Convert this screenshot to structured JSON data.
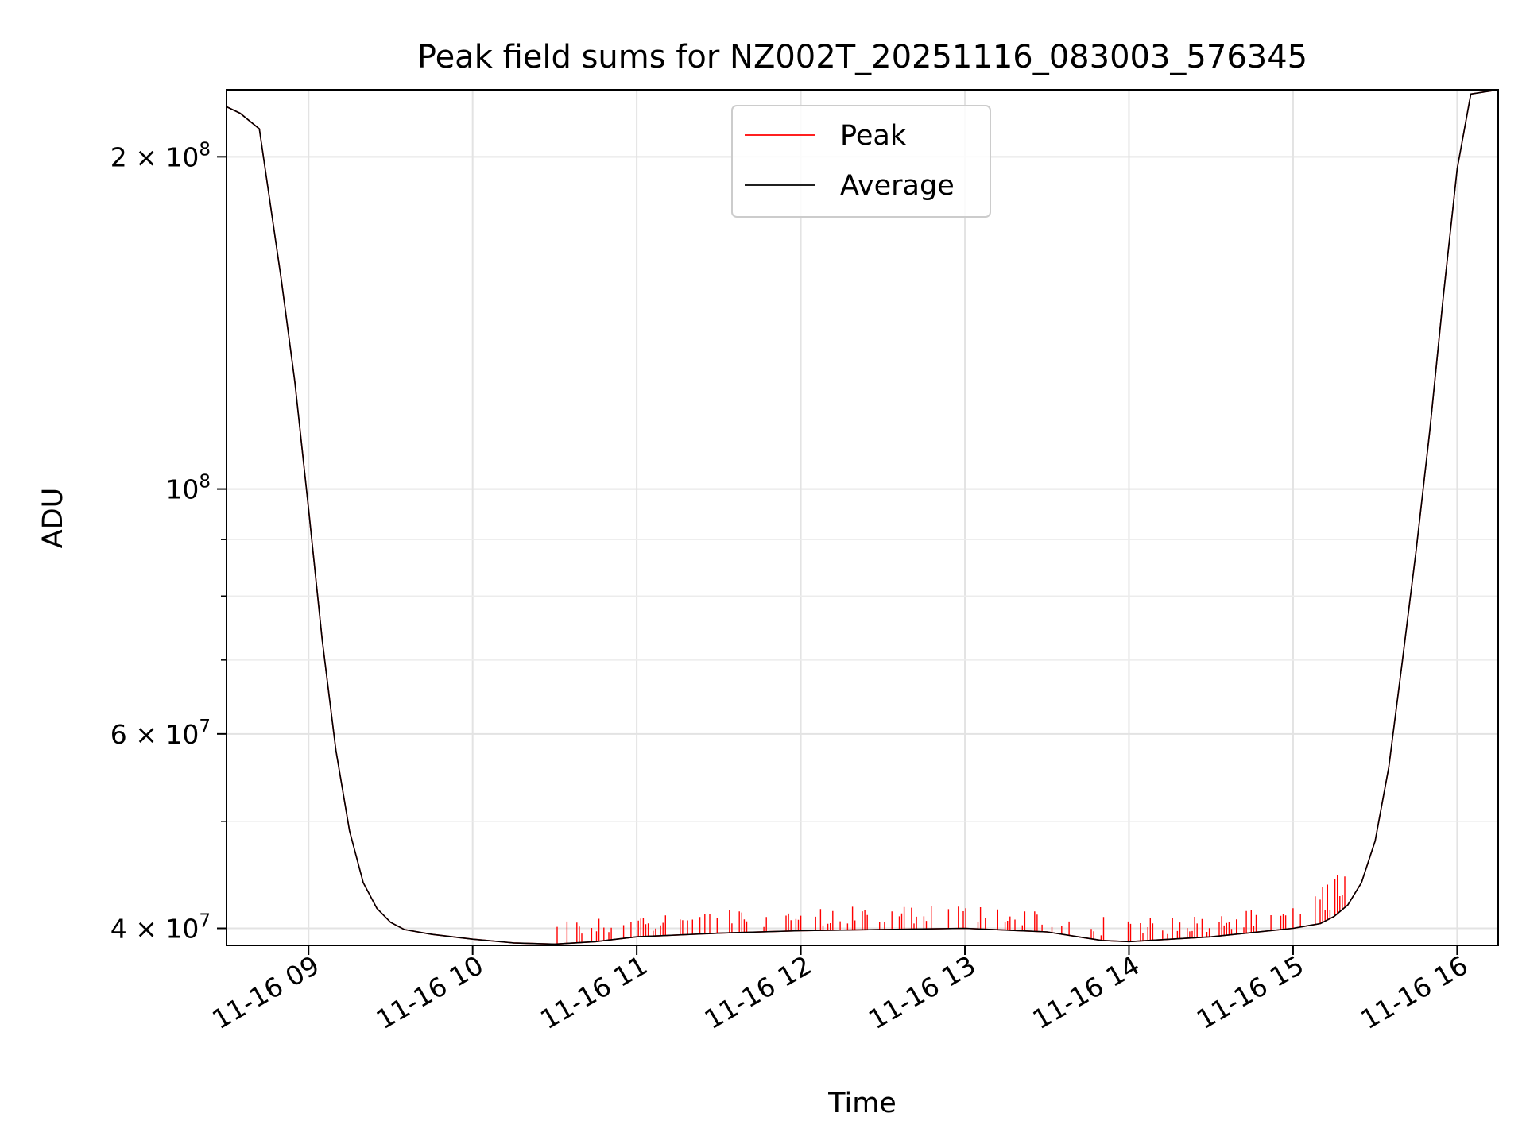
{
  "chart_data": {
    "type": "line",
    "title": "Peak field sums for NZ002T_20251116_083003_576345",
    "xlabel": "Time",
    "ylabel": "ADU",
    "yscale": "log",
    "xlim": [
      "2025-11-16 08:30",
      "2025-11-16 16:15"
    ],
    "ylim": [
      38600000,
      230000000
    ],
    "x_tick_labels": [
      "11-16 09",
      "11-16 10",
      "11-16 11",
      "11-16 12",
      "11-16 13",
      "11-16 14",
      "11-16 15",
      "11-16 16"
    ],
    "y_tick_labels": [
      {
        "value": 40000000,
        "base": "4 × 10",
        "exp": "7"
      },
      {
        "value": 60000000,
        "base": "6 × 10",
        "exp": "7"
      },
      {
        "value": 100000000,
        "base": "10",
        "exp": "8"
      },
      {
        "value": 200000000,
        "base": "2 × 10",
        "exp": "8"
      }
    ],
    "y_minor_ticks": [
      50000000,
      70000000,
      80000000,
      90000000
    ],
    "grid": true,
    "legend_position": "top-center",
    "series": [
      {
        "name": "Peak",
        "color": "#ff0000",
        "spikes": "frequent positive spikes of about 0.5–2 × 10^6 above Average between 10:30 and 15:20",
        "x": [
          "2025-11-16 08:30",
          "2025-11-16 08:35",
          "2025-11-16 08:42",
          "2025-11-16 08:50",
          "2025-11-16 08:55",
          "2025-11-16 09:00",
          "2025-11-16 09:05",
          "2025-11-16 09:10",
          "2025-11-16 09:15",
          "2025-11-16 09:20",
          "2025-11-16 09:25",
          "2025-11-16 09:30",
          "2025-11-16 09:35",
          "2025-11-16 09:45",
          "2025-11-16 10:00",
          "2025-11-16 10:15",
          "2025-11-16 10:30",
          "2025-11-16 10:45",
          "2025-11-16 11:00",
          "2025-11-16 11:30",
          "2025-11-16 12:00",
          "2025-11-16 12:30",
          "2025-11-16 13:00",
          "2025-11-16 13:30",
          "2025-11-16 13:50",
          "2025-11-16 14:00",
          "2025-11-16 14:30",
          "2025-11-16 15:00",
          "2025-11-16 15:10",
          "2025-11-16 15:15",
          "2025-11-16 15:20",
          "2025-11-16 15:25",
          "2025-11-16 15:30",
          "2025-11-16 15:35",
          "2025-11-16 15:40",
          "2025-11-16 15:45",
          "2025-11-16 15:50",
          "2025-11-16 15:55",
          "2025-11-16 16:00",
          "2025-11-16 16:05",
          "2025-11-16 16:15"
        ],
        "y": [
          222000000,
          219000000,
          212000000,
          155000000,
          125000000,
          96000000,
          73000000,
          58000000,
          49000000,
          44000000,
          41700000,
          40500000,
          39900000,
          39500000,
          39100000,
          38800000,
          38700000,
          38900000,
          39300000,
          39600000,
          39800000,
          39900000,
          40000000,
          39700000,
          39000000,
          38900000,
          39300000,
          40000000,
          40400000,
          41000000,
          42000000,
          44000000,
          48000000,
          56000000,
          70000000,
          88000000,
          113000000,
          150000000,
          195000000,
          228000000,
          230000000
        ]
      },
      {
        "name": "Average",
        "color": "#000000",
        "x": [
          "2025-11-16 08:30",
          "2025-11-16 08:35",
          "2025-11-16 08:42",
          "2025-11-16 08:50",
          "2025-11-16 08:55",
          "2025-11-16 09:00",
          "2025-11-16 09:05",
          "2025-11-16 09:10",
          "2025-11-16 09:15",
          "2025-11-16 09:20",
          "2025-11-16 09:25",
          "2025-11-16 09:30",
          "2025-11-16 09:35",
          "2025-11-16 09:45",
          "2025-11-16 10:00",
          "2025-11-16 10:15",
          "2025-11-16 10:30",
          "2025-11-16 10:45",
          "2025-11-16 11:00",
          "2025-11-16 11:30",
          "2025-11-16 12:00",
          "2025-11-16 12:30",
          "2025-11-16 13:00",
          "2025-11-16 13:30",
          "2025-11-16 13:50",
          "2025-11-16 14:00",
          "2025-11-16 14:30",
          "2025-11-16 15:00",
          "2025-11-16 15:10",
          "2025-11-16 15:15",
          "2025-11-16 15:20",
          "2025-11-16 15:25",
          "2025-11-16 15:30",
          "2025-11-16 15:35",
          "2025-11-16 15:40",
          "2025-11-16 15:45",
          "2025-11-16 15:50",
          "2025-11-16 15:55",
          "2025-11-16 16:00",
          "2025-11-16 16:05",
          "2025-11-16 16:15"
        ],
        "y": [
          222000000,
          219000000,
          212000000,
          155000000,
          125000000,
          96000000,
          73000000,
          58000000,
          49000000,
          44000000,
          41700000,
          40500000,
          39900000,
          39500000,
          39100000,
          38800000,
          38700000,
          38900000,
          39300000,
          39600000,
          39800000,
          39900000,
          40000000,
          39700000,
          39000000,
          38900000,
          39300000,
          40000000,
          40400000,
          41000000,
          42000000,
          44000000,
          48000000,
          56000000,
          70000000,
          88000000,
          113000000,
          150000000,
          195000000,
          228000000,
          230000000
        ]
      }
    ]
  }
}
